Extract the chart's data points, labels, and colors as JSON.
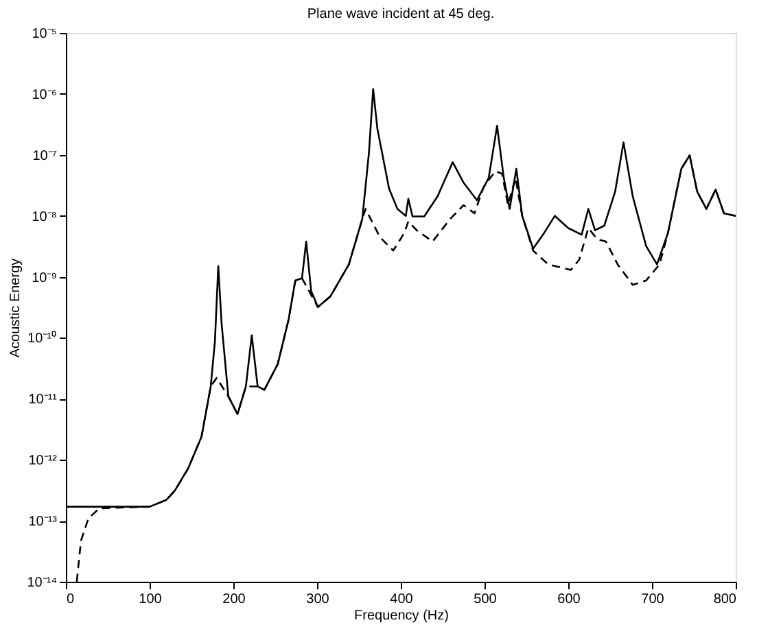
{
  "chart_data": {
    "type": "line",
    "title": "Plane wave incident at 45 deg.",
    "xlabel": "Frequency (Hz)",
    "ylabel": "Acoustic Energy",
    "log": "y",
    "grid": false,
    "legend": false,
    "marker": "none",
    "xlim": [
      0,
      800
    ],
    "xticks": [
      0,
      100,
      200,
      300,
      400,
      500,
      600,
      700,
      800
    ],
    "ylim": [
      1e-14,
      1e-05
    ],
    "yticks": [
      {
        "value": 1e-14,
        "label": "10⁻¹⁴"
      },
      {
        "value": 1e-13,
        "label": "10⁻¹³"
      },
      {
        "value": 1e-12,
        "label": "10⁻¹²"
      },
      {
        "value": 1e-11,
        "label": "10⁻¹¹"
      },
      {
        "value": 1e-10,
        "label": "10⁻¹⁰"
      },
      {
        "value": 1e-09,
        "label": "10⁻⁹"
      },
      {
        "value": 1e-08,
        "label": "10⁻⁸"
      },
      {
        "value": 1e-07,
        "label": "10⁻⁷"
      },
      {
        "value": 1e-06,
        "label": "10⁻⁶"
      },
      {
        "value": 1e-05,
        "label": "10⁻⁵"
      }
    ],
    "series": [
      {
        "color": "#000000",
        "line_style": "solid",
        "x": [
          0,
          100,
          120,
          130,
          146,
          162,
          173,
          178,
          182,
          186,
          194,
          205,
          215,
          222,
          229,
          237,
          253,
          266,
          274,
          282,
          287,
          293,
          301,
          316,
          338,
          354,
          362,
          367,
          372,
          386,
          396,
          406,
          409,
          414,
          428,
          444,
          462,
          475,
          491,
          505,
          515,
          523,
          530,
          538,
          545,
          558,
          571,
          584,
          600,
          616,
          624,
          632,
          643,
          656,
          666,
          677,
          693,
          706,
          719,
          735,
          745,
          754,
          765,
          776,
          786,
          800
        ],
        "values": [
          1.7e-13,
          1.7e-13,
          2.2e-13,
          3.1e-13,
          7.2e-13,
          2.4e-12,
          1.6e-11,
          8.7e-11,
          1.5e-09,
          1.7e-10,
          1.1e-11,
          5.6e-12,
          1.6e-11,
          1.1e-10,
          1.6e-11,
          1.4e-11,
          3.7e-11,
          2e-10,
          8.7e-10,
          9.5e-10,
          3.8e-09,
          5.8e-10,
          3.2e-10,
          4.8e-10,
          1.6e-09,
          8.9e-09,
          1.1e-07,
          1.2e-06,
          2.7e-07,
          2.8e-08,
          1.3e-08,
          1e-08,
          1.9e-08,
          9.8e-09,
          9.8e-09,
          2.1e-08,
          7.6e-08,
          3.5e-08,
          1.8e-08,
          4.2e-08,
          3e-07,
          4.2e-08,
          1.3e-08,
          5.9e-08,
          1e-08,
          2.9e-09,
          5.2e-09,
          1e-08,
          6.3e-09,
          4.9e-09,
          1.3e-08,
          5.8e-09,
          6.9e-09,
          2.5e-08,
          1.6e-07,
          2.1e-08,
          3.2e-09,
          1.6e-09,
          5.2e-09,
          5.9e-08,
          9.8e-08,
          2.5e-08,
          1.3e-08,
          2.7e-08,
          1.1e-08,
          1e-08
        ]
      },
      {
        "color": "#000000",
        "line_style": "dashed",
        "x": [
          13,
          18,
          27,
          40,
          100,
          120,
          130,
          146,
          162,
          173,
          180,
          194,
          205,
          215,
          229,
          237,
          253,
          266,
          274,
          282,
          301,
          316,
          338,
          354,
          358,
          364,
          375,
          391,
          404,
          409,
          419,
          438,
          459,
          475,
          488,
          499,
          513,
          521,
          528,
          537,
          545,
          558,
          576,
          603,
          613,
          624,
          635,
          645,
          659,
          677,
          693,
          709,
          719,
          735,
          745,
          754,
          765,
          776,
          786,
          800
        ],
        "values": [
          1e-14,
          4.7e-14,
          1.1e-13,
          1.6e-13,
          1.7e-13,
          2.2e-13,
          3.1e-13,
          7.2e-13,
          2.4e-12,
          1.6e-11,
          2.2e-11,
          1.1e-11,
          5.6e-12,
          1.6e-11,
          1.6e-11,
          1.4e-11,
          3.7e-11,
          2e-10,
          8.7e-10,
          9.5e-10,
          3.2e-10,
          4.8e-10,
          1.6e-09,
          8.9e-09,
          1.3e-08,
          8.9e-09,
          4.5e-09,
          2.7e-09,
          5.2e-09,
          8.1e-09,
          5.8e-09,
          3.8e-09,
          8.9e-09,
          1.5e-08,
          1.1e-08,
          3e-08,
          5.4e-08,
          4.9e-08,
          1.5e-08,
          4.2e-08,
          1e-08,
          2.7e-09,
          1.6e-09,
          1.3e-09,
          1.9e-09,
          6.3e-09,
          4.1e-09,
          3.8e-09,
          1.6e-09,
          7.4e-10,
          8.7e-10,
          1.6e-09,
          5.2e-09,
          5.9e-08,
          9.8e-08,
          2.5e-08,
          1.3e-08,
          2.7e-08,
          1.1e-08,
          1e-08
        ]
      }
    ]
  }
}
